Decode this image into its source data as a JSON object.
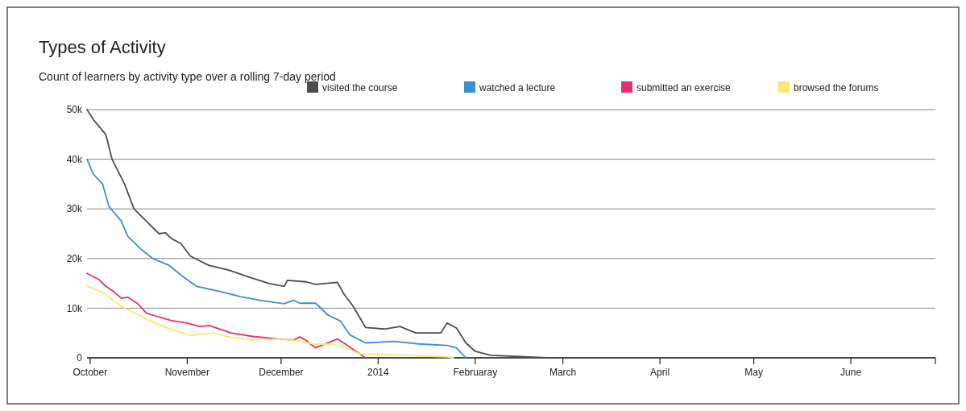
{
  "chart_data": {
    "type": "line",
    "title": "Types of Activity",
    "subtitle": "Count of learners by activity type over a rolling 7-day period",
    "xlim": [
      "2013-09-30",
      "2014-06-28"
    ],
    "xticks": [
      {
        "value": "2013-10-01",
        "label": "October"
      },
      {
        "value": "2013-11-01",
        "label": "November"
      },
      {
        "value": "2013-12-01",
        "label": "December"
      },
      {
        "value": "2014-01-01",
        "label": "2014"
      },
      {
        "value": "2014-02-01",
        "label": "Februaray"
      },
      {
        "value": "2014-03-01",
        "label": "March"
      },
      {
        "value": "2014-04-01",
        "label": "April"
      },
      {
        "value": "2014-05-01",
        "label": "May"
      },
      {
        "value": "2014-06-01",
        "label": "June"
      }
    ],
    "ylim": [
      0,
      50000
    ],
    "yticks": [
      {
        "value": 0,
        "label": "0"
      },
      {
        "value": 10000,
        "label": "10k"
      },
      {
        "value": 20000,
        "label": "20k"
      },
      {
        "value": 30000,
        "label": "30k"
      },
      {
        "value": 40000,
        "label": "40k"
      },
      {
        "value": 50000,
        "label": "50k"
      }
    ],
    "grid": "y",
    "legend": "top right",
    "marker": "none",
    "line_style": "solid",
    "series": [
      {
        "name": "visited the course",
        "color": "#4d4d4d",
        "x": [
          "2013-09-30",
          "2013-10-02",
          "2013-10-06",
          "2013-10-08",
          "2013-10-12",
          "2013-10-15",
          "2013-10-19",
          "2013-10-23",
          "2013-10-25",
          "2013-10-27",
          "2013-10-30",
          "2013-11-02",
          "2013-11-08",
          "2013-11-14",
          "2013-11-21",
          "2013-11-27",
          "2013-12-02",
          "2013-12-03",
          "2013-12-09",
          "2013-12-12",
          "2013-12-19",
          "2013-12-21",
          "2013-12-24",
          "2013-12-28",
          "2014-01-03",
          "2014-01-08",
          "2014-01-13",
          "2014-01-20",
          "2014-01-21",
          "2014-01-23",
          "2014-01-26",
          "2014-01-29",
          "2014-02-01",
          "2014-02-06",
          "2014-02-24"
        ],
        "values": [
          50000,
          48000,
          45000,
          40000,
          35000,
          30000,
          27500,
          25000,
          25200,
          24000,
          23000,
          20500,
          18600,
          17700,
          16200,
          15000,
          14400,
          15600,
          15300,
          14800,
          15200,
          12900,
          10400,
          6100,
          5800,
          6300,
          5000,
          5000,
          5000,
          7000,
          6000,
          3000,
          1300,
          500,
          0
        ]
      },
      {
        "name": "watched a lecture",
        "color": "#3d8fd1",
        "x": [
          "2013-09-30",
          "2013-10-02",
          "2013-10-05",
          "2013-10-07",
          "2013-10-11",
          "2013-10-13",
          "2013-10-17",
          "2013-10-21",
          "2013-10-26",
          "2013-10-31",
          "2013-11-04",
          "2013-11-12",
          "2013-11-18",
          "2013-11-25",
          "2013-12-02",
          "2013-12-05",
          "2013-12-07",
          "2013-12-12",
          "2013-12-16",
          "2013-12-20",
          "2013-12-23",
          "2013-12-28",
          "2014-01-06",
          "2014-01-14",
          "2014-01-23",
          "2014-01-26",
          "2014-01-29"
        ],
        "values": [
          40000,
          37000,
          35000,
          30500,
          27500,
          24500,
          22000,
          20000,
          18700,
          16200,
          14400,
          13300,
          12300,
          11500,
          10900,
          11600,
          11000,
          11000,
          8600,
          7400,
          4600,
          3000,
          3300,
          2800,
          2500,
          2000,
          0
        ]
      },
      {
        "name": "submitted an exercise",
        "color": "#e0336e",
        "x": [
          "2013-09-30",
          "2013-10-04",
          "2013-10-06",
          "2013-10-08",
          "2013-10-11",
          "2013-10-13",
          "2013-10-16",
          "2013-10-19",
          "2013-10-23",
          "2013-10-27",
          "2013-11-01",
          "2013-11-05",
          "2013-11-08",
          "2013-11-15",
          "2013-11-22",
          "2013-11-30",
          "2013-12-05",
          "2013-12-07",
          "2013-12-09",
          "2013-12-12",
          "2013-12-17",
          "2013-12-19",
          "2013-12-21",
          "2013-12-24",
          "2013-12-28"
        ],
        "values": [
          17000,
          15700,
          14400,
          13600,
          12000,
          12200,
          11000,
          9000,
          8200,
          7500,
          7000,
          6300,
          6500,
          5000,
          4300,
          3800,
          3600,
          4200,
          3500,
          2000,
          3300,
          3800,
          3000,
          1700,
          0
        ]
      },
      {
        "name": "browsed the forums",
        "color": "#f2ec6e",
        "x": [
          "2013-09-30",
          "2013-10-03",
          "2013-10-05",
          "2013-10-11",
          "2013-10-16",
          "2013-10-21",
          "2013-10-26",
          "2013-11-02",
          "2013-11-09",
          "2013-11-16",
          "2013-11-22",
          "2013-12-01",
          "2013-12-07",
          "2013-12-12",
          "2013-12-17",
          "2013-12-22",
          "2013-12-26",
          "2014-01-10",
          "2014-01-23",
          "2014-01-25"
        ],
        "values": [
          14500,
          13600,
          13200,
          10300,
          8800,
          7200,
          5900,
          4500,
          5000,
          4000,
          3600,
          3800,
          3400,
          2700,
          2800,
          2000,
          800,
          500,
          200,
          0
        ]
      }
    ]
  }
}
